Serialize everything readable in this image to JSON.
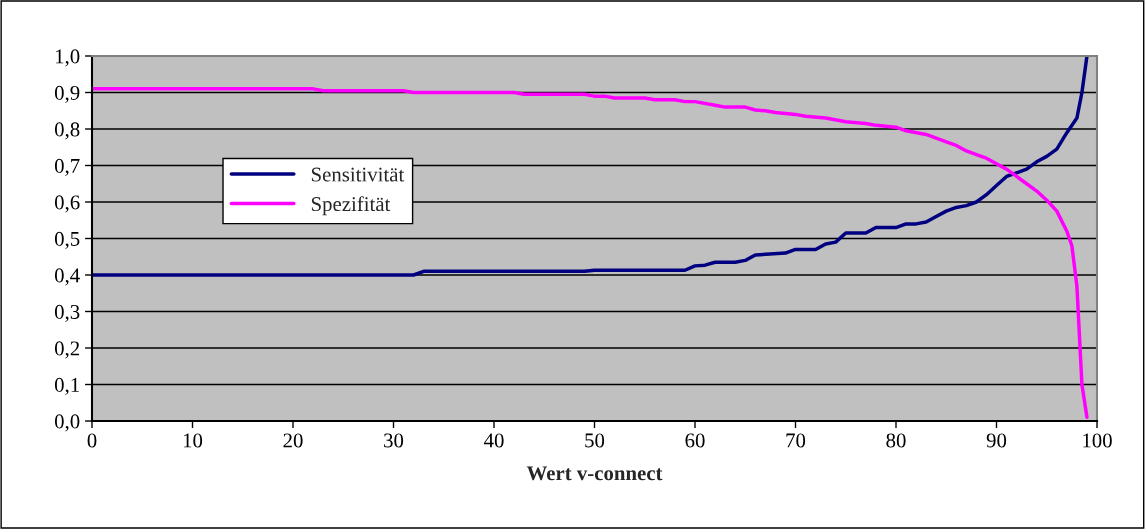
{
  "chart_data": {
    "type": "line",
    "xlabel": "Wert v-connect",
    "xlim": [
      0,
      100
    ],
    "xticks": [
      0,
      10,
      20,
      30,
      40,
      50,
      60,
      70,
      80,
      90,
      100
    ],
    "ylim": [
      0,
      1
    ],
    "yticks": [
      {
        "value": 0,
        "label": "0,0"
      },
      {
        "value": 0.1,
        "label": "0,1"
      },
      {
        "value": 0.2,
        "label": "0,2"
      },
      {
        "value": 0.3,
        "label": "0,3"
      },
      {
        "value": 0.4,
        "label": "0,4"
      },
      {
        "value": 0.5,
        "label": "0,5"
      },
      {
        "value": 0.6,
        "label": "0,6"
      },
      {
        "value": 0.7,
        "label": "0,7"
      },
      {
        "value": 0.8,
        "label": "0,8"
      },
      {
        "value": 0.9,
        "label": "0,9"
      },
      {
        "value": 1,
        "label": "1,0"
      }
    ],
    "grid": "y",
    "legend": "left",
    "marker": "none",
    "line_style": "solid",
    "series": [
      {
        "name": "Sensitivität",
        "color": "#000080",
        "x": [
          0,
          32,
          33,
          49,
          50,
          59,
          60,
          61,
          62,
          64,
          65,
          66,
          69,
          70,
          72,
          73,
          74,
          75,
          77,
          78,
          80,
          81,
          82,
          83,
          84,
          85,
          86,
          87,
          88,
          89,
          90,
          91,
          92,
          93,
          94,
          95,
          96,
          97,
          98,
          98.5,
          99
        ],
        "values": [
          0.4,
          0.4,
          0.41,
          0.41,
          0.413,
          0.413,
          0.425,
          0.427,
          0.435,
          0.435,
          0.44,
          0.455,
          0.46,
          0.47,
          0.47,
          0.485,
          0.49,
          0.515,
          0.515,
          0.53,
          0.53,
          0.54,
          0.54,
          0.545,
          0.56,
          0.575,
          0.585,
          0.59,
          0.6,
          0.62,
          0.645,
          0.67,
          0.68,
          0.69,
          0.71,
          0.725,
          0.745,
          0.79,
          0.83,
          0.9,
          1.0
        ]
      },
      {
        "name": "Spezifität",
        "color": "#ff00ff",
        "x": [
          0,
          22,
          23,
          31,
          32,
          42,
          43,
          49,
          50,
          51,
          52,
          55,
          56,
          58,
          59,
          60,
          62,
          63,
          65,
          66,
          67,
          68,
          70,
          71,
          73,
          75,
          77,
          78,
          80,
          81,
          83,
          84,
          85,
          86,
          87,
          88,
          89,
          90,
          91,
          92,
          93,
          94,
          95,
          96,
          97,
          97.5,
          98,
          98.5,
          99
        ],
        "values": [
          0.91,
          0.91,
          0.905,
          0.905,
          0.9,
          0.9,
          0.895,
          0.895,
          0.89,
          0.89,
          0.885,
          0.885,
          0.88,
          0.88,
          0.875,
          0.875,
          0.865,
          0.86,
          0.86,
          0.852,
          0.85,
          0.845,
          0.84,
          0.835,
          0.83,
          0.82,
          0.815,
          0.81,
          0.805,
          0.795,
          0.785,
          0.775,
          0.765,
          0.755,
          0.74,
          0.73,
          0.72,
          0.705,
          0.69,
          0.67,
          0.65,
          0.63,
          0.605,
          0.575,
          0.52,
          0.48,
          0.37,
          0.1,
          0.01
        ]
      }
    ]
  }
}
